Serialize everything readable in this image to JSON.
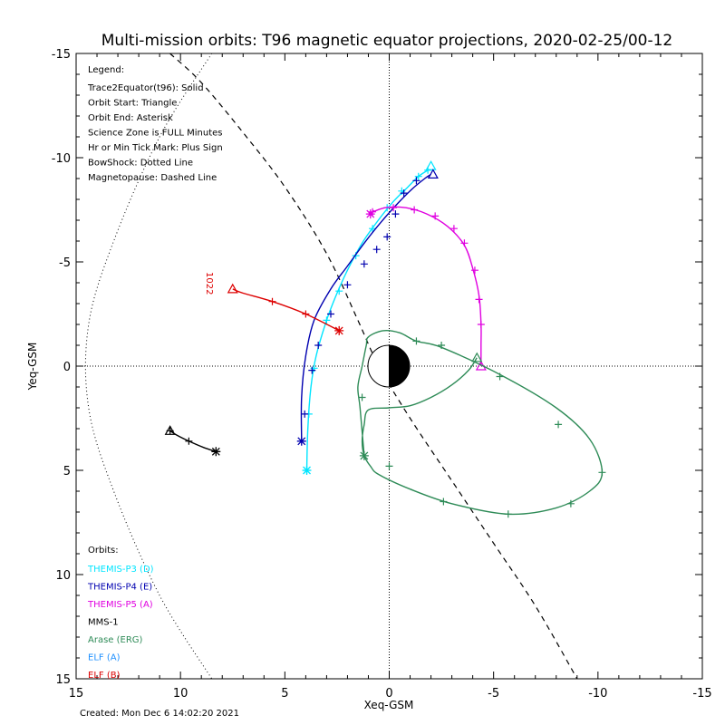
{
  "chart_data": {
    "type": "line",
    "title": "Multi-mission orbits: T96 magnetic equator projections, 2020-02-25/00-12",
    "xlabel": "Xeq-GSM",
    "ylabel": "Yeq-GSM",
    "xlim": [
      15,
      -15
    ],
    "ylim": [
      15,
      -15
    ],
    "x_ticks": [
      "15",
      "10",
      "5",
      "0",
      "-5",
      "-10",
      "-15"
    ],
    "y_ticks": [
      "-15",
      "-10",
      "-5",
      "0",
      "5",
      "10",
      "15"
    ],
    "legend_title": "Legend:",
    "legend_lines": [
      "Trace2Equator(t96): Solid",
      "Orbit Start: Triangle",
      "Orbit End: Asterisk",
      "Science Zone is FULL Minutes",
      "Hr or Min Tick Mark: Plus Sign",
      "BowShock: Dotted Line",
      "Magnetopause: Dashed Line"
    ],
    "orbits_title": "Orbits:",
    "created": "Created: Mon Dec  6 14:02:20 2021",
    "annotation": "1022",
    "magnetopause": {
      "style": "dashed",
      "color": "#000000",
      "points": [
        [
          10.5,
          -15
        ],
        [
          9,
          -13.6
        ],
        [
          7,
          -11.2
        ],
        [
          5,
          -8.6
        ],
        [
          3,
          -5.4
        ],
        [
          1.5,
          -2.2
        ],
        [
          0.5,
          0
        ],
        [
          -1,
          2.5
        ],
        [
          -3,
          5.5
        ],
        [
          -5,
          8.5
        ],
        [
          -7,
          11.5
        ],
        [
          -9,
          15
        ]
      ]
    },
    "bowshock": {
      "style": "dotted",
      "color": "#000000",
      "points": [
        [
          8.5,
          -15
        ],
        [
          11,
          -11
        ],
        [
          13.2,
          -6
        ],
        [
          14.4,
          -2
        ],
        [
          14.4,
          2
        ],
        [
          13.2,
          6
        ],
        [
          11,
          11
        ],
        [
          8.5,
          15
        ]
      ]
    },
    "series": [
      {
        "name": "THEMIS-P3 (D)",
        "color": "#00e5ff",
        "points": [
          [
            3.95,
            5.0
          ],
          [
            3.9,
            3.0
          ],
          [
            3.75,
            1.0
          ],
          [
            3.5,
            -0.5
          ],
          [
            3.0,
            -2.2
          ],
          [
            2.5,
            -3.5
          ],
          [
            2.0,
            -4.6
          ],
          [
            1.3,
            -5.9
          ],
          [
            0.6,
            -6.9
          ],
          [
            -0.2,
            -7.9
          ],
          [
            -0.9,
            -8.6
          ],
          [
            -1.4,
            -9.1
          ],
          [
            -1.85,
            -9.4
          ]
        ],
        "ticks": [
          [
            3.95,
            5.0
          ],
          [
            3.85,
            2.3
          ],
          [
            3.6,
            0.1
          ],
          [
            3.0,
            -2.2
          ],
          [
            2.4,
            -3.6
          ],
          [
            1.6,
            -5.3
          ],
          [
            0.8,
            -6.6
          ],
          [
            0.1,
            -7.6
          ],
          [
            -0.6,
            -8.4
          ],
          [
            -1.4,
            -9.1
          ],
          [
            -1.85,
            -9.4
          ]
        ],
        "start": [
          -2.0,
          -9.6
        ],
        "end": [
          3.95,
          5.0
        ]
      },
      {
        "name": "THEMIS-P4 (E)",
        "color": "#0000b0",
        "points": [
          [
            4.2,
            3.6
          ],
          [
            4.2,
            1.5
          ],
          [
            4.0,
            -0.5
          ],
          [
            3.6,
            -2.2
          ],
          [
            2.8,
            -3.7
          ],
          [
            2.0,
            -4.8
          ],
          [
            1.2,
            -5.9
          ],
          [
            0.4,
            -6.9
          ],
          [
            -0.4,
            -7.8
          ],
          [
            -1.1,
            -8.5
          ],
          [
            -1.7,
            -9.0
          ],
          [
            -2.0,
            -9.2
          ]
        ],
        "ticks": [
          [
            4.05,
            2.3
          ],
          [
            3.7,
            0.2
          ],
          [
            3.4,
            -1.0
          ],
          [
            2.8,
            -2.5
          ],
          [
            2.0,
            -3.9
          ],
          [
            1.2,
            -4.9
          ],
          [
            0.6,
            -5.6
          ],
          [
            0.1,
            -6.2
          ],
          [
            -0.3,
            -7.3
          ],
          [
            -0.7,
            -8.3
          ],
          [
            -1.3,
            -8.9
          ]
        ],
        "start": [
          -2.1,
          -9.2
        ],
        "end": [
          4.2,
          3.6
        ]
      },
      {
        "name": "THEMIS-P5 (A)",
        "color": "#e000e0",
        "points": [
          [
            1.0,
            -7.3
          ],
          [
            0.2,
            -7.6
          ],
          [
            -0.8,
            -7.6
          ],
          [
            -1.8,
            -7.3
          ],
          [
            -2.8,
            -6.7
          ],
          [
            -3.6,
            -5.8
          ],
          [
            -4.0,
            -4.7
          ],
          [
            -4.3,
            -3.4
          ],
          [
            -4.4,
            -2.0
          ],
          [
            -4.4,
            -1.0
          ],
          [
            -4.4,
            0
          ]
        ],
        "ticks": [
          [
            0.8,
            -7.4
          ],
          [
            -0.2,
            -7.6
          ],
          [
            -1.2,
            -7.5
          ],
          [
            -2.2,
            -7.2
          ],
          [
            -3.1,
            -6.6
          ],
          [
            -3.6,
            -5.9
          ],
          [
            -4.1,
            -4.6
          ],
          [
            -4.3,
            -3.2
          ],
          [
            -4.4,
            -2.0
          ]
        ],
        "start": [
          -4.4,
          0
        ],
        "end": [
          0.9,
          -7.3
        ]
      },
      {
        "name": "MMS-1",
        "color": "#000000",
        "points": [
          [
            10.5,
            3.1
          ],
          [
            10.2,
            3.3
          ],
          [
            9.6,
            3.6
          ],
          [
            8.9,
            3.9
          ],
          [
            8.3,
            4.1
          ]
        ],
        "ticks": [
          [
            10.5,
            3.1
          ],
          [
            9.6,
            3.6
          ]
        ],
        "start": [
          10.5,
          3.1
        ],
        "end": [
          8.3,
          4.1
        ]
      },
      {
        "name": "Arase (ERG)",
        "color": "#2e8b57",
        "points": [
          [
            -4.2,
            -0.4
          ],
          [
            -3.8,
            0.2
          ],
          [
            -3.0,
            0.9
          ],
          [
            -2.0,
            1.5
          ],
          [
            -1.0,
            1.9
          ],
          [
            0,
            2.0
          ],
          [
            1.0,
            2.1
          ],
          [
            1.2,
            2.8
          ],
          [
            1.3,
            3.6
          ],
          [
            1.2,
            4.3
          ],
          [
            0.9,
            4.8
          ],
          [
            0.5,
            5.2
          ],
          [
            -1.0,
            5.9
          ],
          [
            -3.0,
            6.6
          ],
          [
            -5.7,
            7.1
          ],
          [
            -8.0,
            6.8
          ],
          [
            -9.6,
            6.0
          ],
          [
            -10.2,
            5.1
          ],
          [
            -9.6,
            3.5
          ],
          [
            -8.0,
            2.0
          ],
          [
            -5.3,
            0.4
          ],
          [
            -2.5,
            -0.9
          ],
          [
            -1.3,
            -1.2
          ],
          [
            -0.5,
            -1.6
          ],
          [
            0.3,
            -1.7
          ],
          [
            1.0,
            -1.4
          ],
          [
            1.1,
            -1.0
          ],
          [
            1.3,
            0
          ],
          [
            1.5,
            1.0
          ],
          [
            1.4,
            2.0
          ],
          [
            1.2,
            4.3
          ]
        ],
        "ticks": [
          [
            -2.5,
            -1.0
          ],
          [
            -1.3,
            -1.2
          ],
          [
            0,
            4.8
          ],
          [
            -2.6,
            6.5
          ],
          [
            -5.7,
            7.1
          ],
          [
            -8.7,
            6.6
          ],
          [
            -10.2,
            5.1
          ],
          [
            -8.1,
            2.8
          ],
          [
            -5.3,
            0.5
          ],
          [
            1.3,
            1.5
          ]
        ],
        "start": [
          -4.2,
          -0.4
        ],
        "end": [
          1.2,
          4.3
        ]
      },
      {
        "name": "ELF (A)",
        "color": "#1e90ff",
        "points": [],
        "ticks": [],
        "start": null,
        "end": null
      },
      {
        "name": "ELF (B)",
        "color": "#dd0000",
        "points": [
          [
            7.5,
            -3.7
          ],
          [
            7.0,
            -3.5
          ],
          [
            5.6,
            -3.1
          ],
          [
            4.0,
            -2.5
          ],
          [
            2.4,
            -1.7
          ]
        ],
        "ticks": [
          [
            5.6,
            -3.1
          ],
          [
            4.0,
            -2.5
          ]
        ],
        "start": [
          7.5,
          -3.7
        ],
        "end": [
          2.4,
          -1.7
        ]
      }
    ]
  }
}
